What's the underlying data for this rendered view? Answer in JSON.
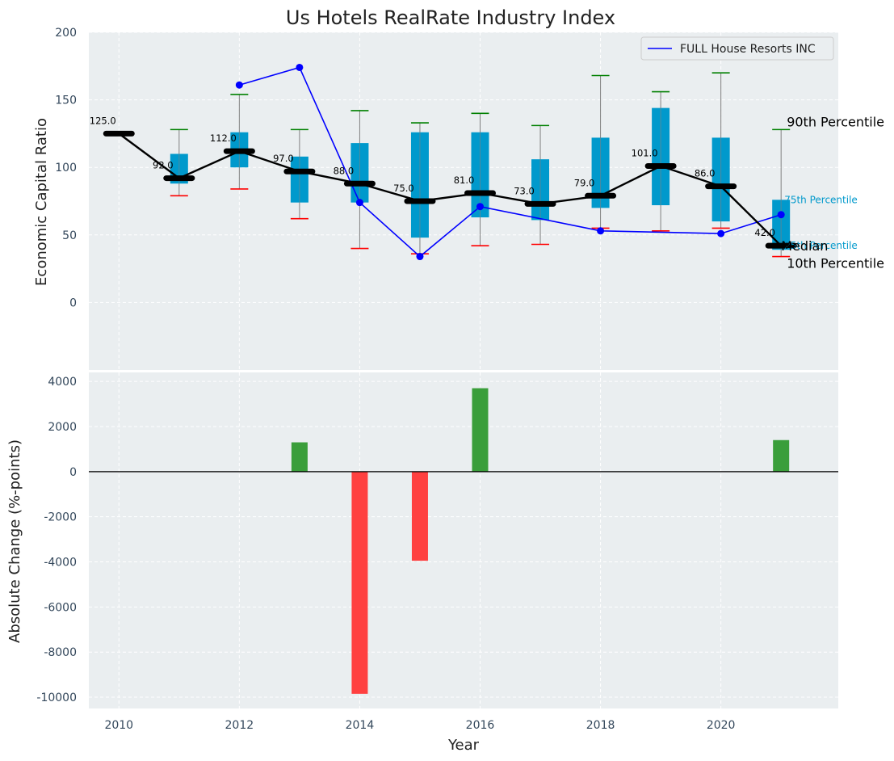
{
  "chart_data": [
    {
      "type": "box-line",
      "title": "Us Hotels RealRate Industry Index",
      "xlabel": "",
      "ylabel": "Economic Capital Ratio",
      "ylim": [
        -50,
        200
      ],
      "yticks": [
        0,
        50,
        100,
        150,
        200
      ],
      "xlim": [
        2009.5,
        2021.95
      ],
      "years": [
        2010,
        2011,
        2012,
        2013,
        2014,
        2015,
        2016,
        2017,
        2018,
        2019,
        2020,
        2021
      ],
      "median": [
        125,
        92,
        112,
        97,
        88,
        75,
        81,
        73,
        79,
        101,
        86,
        42
      ],
      "median_labels": [
        "125.0",
        "92.0",
        "112.0",
        "97.0",
        "88.0",
        "75.0",
        "81.0",
        "73.0",
        "79.0",
        "101.0",
        "86.0",
        "42.0"
      ],
      "q1": [
        null,
        88,
        100,
        74,
        74,
        48,
        63,
        61,
        70,
        72,
        60,
        39
      ],
      "q3": [
        null,
        110,
        126,
        108,
        118,
        126,
        126,
        106,
        122,
        144,
        122,
        76
      ],
      "p10": [
        null,
        79,
        84,
        62,
        40,
        36,
        42,
        43,
        55,
        53,
        55,
        34
      ],
      "p90": [
        null,
        128,
        154,
        128,
        142,
        133,
        140,
        131,
        168,
        156,
        170,
        128
      ],
      "company": {
        "name": "FULL House Resorts INC",
        "x": [
          2012,
          2013,
          2014,
          2015,
          2016,
          2018,
          2020,
          2021
        ],
        "y": [
          161,
          174,
          74,
          34,
          71,
          53,
          51,
          65
        ]
      },
      "legend": {
        "label": "FULL House Resorts INC",
        "position": "upper right"
      },
      "annotations": {
        "p90": "90th Percentile",
        "median": "Median",
        "p10": "10th Percentile",
        "p75": "75th Percentile",
        "p25": "25th Percentile"
      },
      "colors": {
        "box": "#0099cc",
        "median": "#000000",
        "company": "#0000ff",
        "p90_cap": "#008000",
        "p10_cap": "#ff0000",
        "whisker": "#808080",
        "background": "#eaeef0"
      }
    },
    {
      "type": "bar",
      "title": "",
      "xlabel": "Year",
      "ylabel": "Absolute Change (%-points)",
      "ylim": [
        -10500,
        4400
      ],
      "yticks": [
        -10000,
        -8000,
        -6000,
        -4000,
        -2000,
        0,
        2000,
        4000
      ],
      "xticks": [
        2010,
        2012,
        2014,
        2016,
        2018,
        2020
      ],
      "x": [
        2013,
        2014,
        2015,
        2016,
        2021
      ],
      "values": [
        1300,
        -9850,
        -3950,
        3700,
        1400
      ],
      "colors": {
        "positive": "#3a9e3a",
        "negative": "#ff4040",
        "zero_line": "#000000"
      }
    }
  ]
}
